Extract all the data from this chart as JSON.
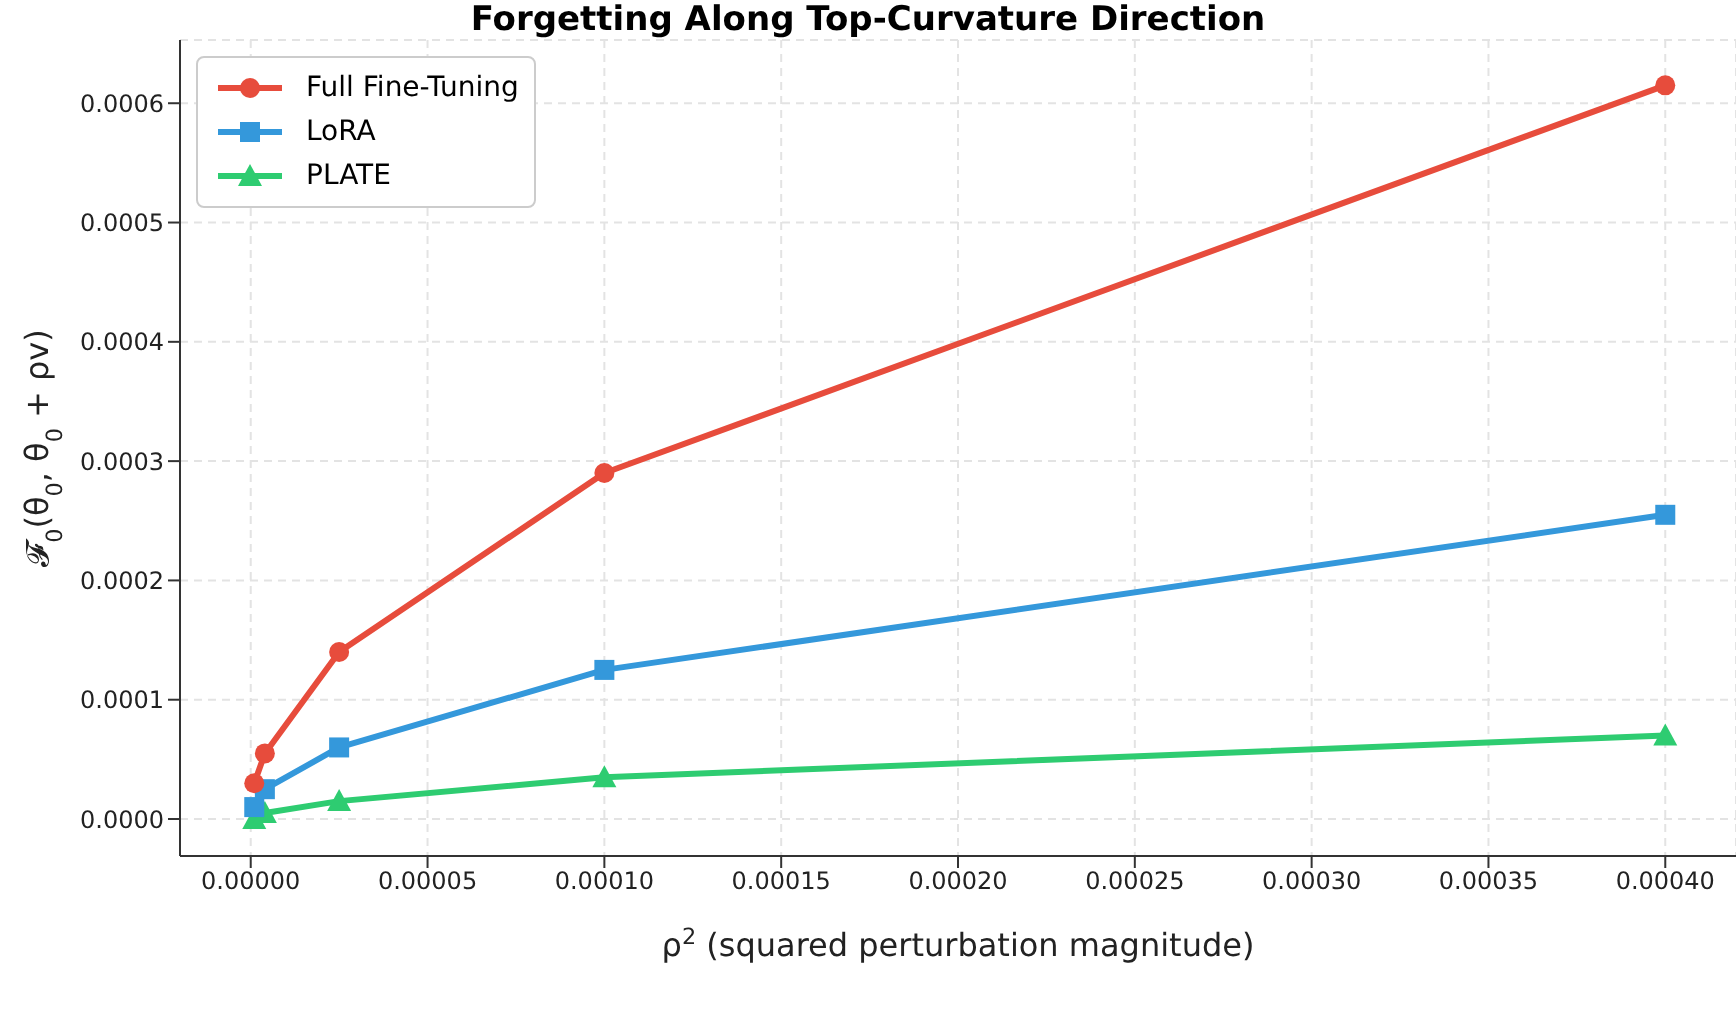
{
  "chart_data": {
    "type": "line",
    "title": "Forgetting Along Top-Curvature Direction",
    "xlabel": "ρ$^{2}$ (squared perturbation magnitude)",
    "ylabel": "𝓕$_{0}$(θ$_{0}$, θ$_{0}$ + ρv)",
    "x": [
      1e-06,
      4e-06,
      2.5e-05,
      0.0001,
      0.0004
    ],
    "series": [
      {
        "name": "Full Fine-Tuning",
        "color": "#e74c3c",
        "marker": "circle",
        "values": [
          3e-05,
          5.5e-05,
          0.00014,
          0.00029,
          0.000615
        ]
      },
      {
        "name": "LoRA",
        "color": "#3498db",
        "marker": "square",
        "values": [
          1e-05,
          2.5e-05,
          6e-05,
          0.000125,
          0.000255
        ]
      },
      {
        "name": "PLATE",
        "color": "#2ecc71",
        "marker": "triangle",
        "values": [
          0,
          5e-06,
          1.5e-05,
          3.5e-05,
          7e-05
        ]
      }
    ],
    "xlim": [
      -2e-05,
      0.00042
    ],
    "xticks": [
      {
        "value": 0,
        "label": "0.00000"
      },
      {
        "value": 5e-05,
        "label": "0.00005"
      },
      {
        "value": 0.0001,
        "label": "0.00010"
      },
      {
        "value": 0.00015,
        "label": "0.00015"
      },
      {
        "value": 0.0002,
        "label": "0.00020"
      },
      {
        "value": 0.00025,
        "label": "0.00025"
      },
      {
        "value": 0.0003,
        "label": "0.00030"
      },
      {
        "value": 0.00035,
        "label": "0.00035"
      },
      {
        "value": 0.0004,
        "label": "0.00040"
      }
    ],
    "ylim": [
      -3.1e-05,
      0.000653
    ],
    "yticks": [
      {
        "value": 0,
        "label": "0.0000"
      },
      {
        "value": 0.0001,
        "label": "0.0001"
      },
      {
        "value": 0.0002,
        "label": "0.0002"
      },
      {
        "value": 0.0003,
        "label": "0.0003"
      },
      {
        "value": 0.0004,
        "label": "0.0004"
      },
      {
        "value": 0.0005,
        "label": "0.0005"
      },
      {
        "value": 0.0006,
        "label": "0.0006"
      }
    ],
    "grid": true,
    "legend": "top left",
    "line_style": "solid"
  }
}
